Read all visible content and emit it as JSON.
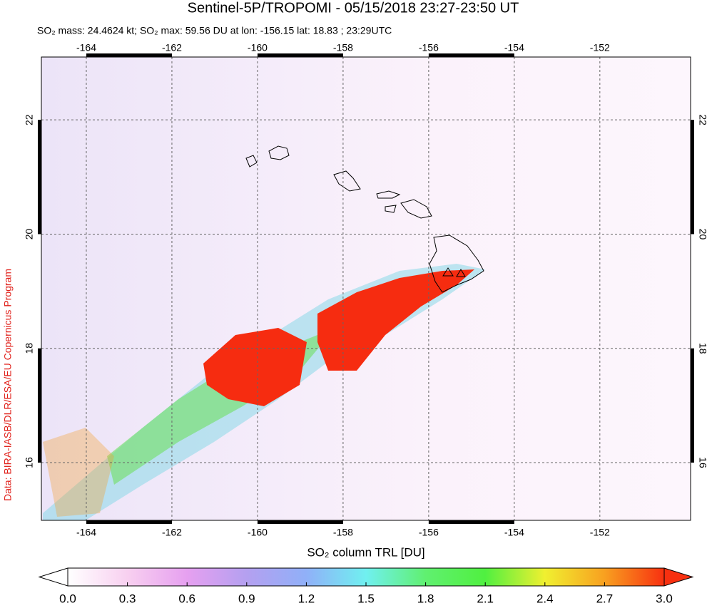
{
  "title": "Sentinel-5P/TROPOMI - 05/15/2018 23:27-23:50 UT",
  "subtitle": "SO₂ mass: 24.4624 kt; SO₂ max: 59.56 DU at lon: -156.15 lat: 18.83 ; 23:29UTC",
  "credit": "Data: BIRA-IASB/DLR/ESA/EU Copernicus Program",
  "map": {
    "xlim": [
      -165.05,
      -149.88
    ],
    "ylim": [
      14.99,
      23.1
    ],
    "xticks": [
      -164,
      -162,
      -160,
      -158,
      -156,
      -154,
      -152
    ],
    "yticks": [
      16,
      18,
      20,
      22
    ],
    "grid": true
  },
  "colorbar": {
    "label": "SO₂ column TRL [DU]",
    "lim": [
      0,
      3
    ],
    "ticks": [
      {
        "value": 0,
        "label": "0.0"
      },
      0.3,
      0.6,
      0.9,
      1.2,
      1.5,
      1.8,
      2.1,
      2.4,
      2.7,
      {
        "value": 3,
        "label": "3.0"
      }
    ],
    "colors": [
      "#ffffff",
      "#f8d0f0",
      "#e6a0f0",
      "#b4a0f0",
      "#90b0f8",
      "#70f0f0",
      "#60f070",
      "#50f040",
      "#f0f030",
      "#f8a020",
      "#f83010"
    ]
  }
}
